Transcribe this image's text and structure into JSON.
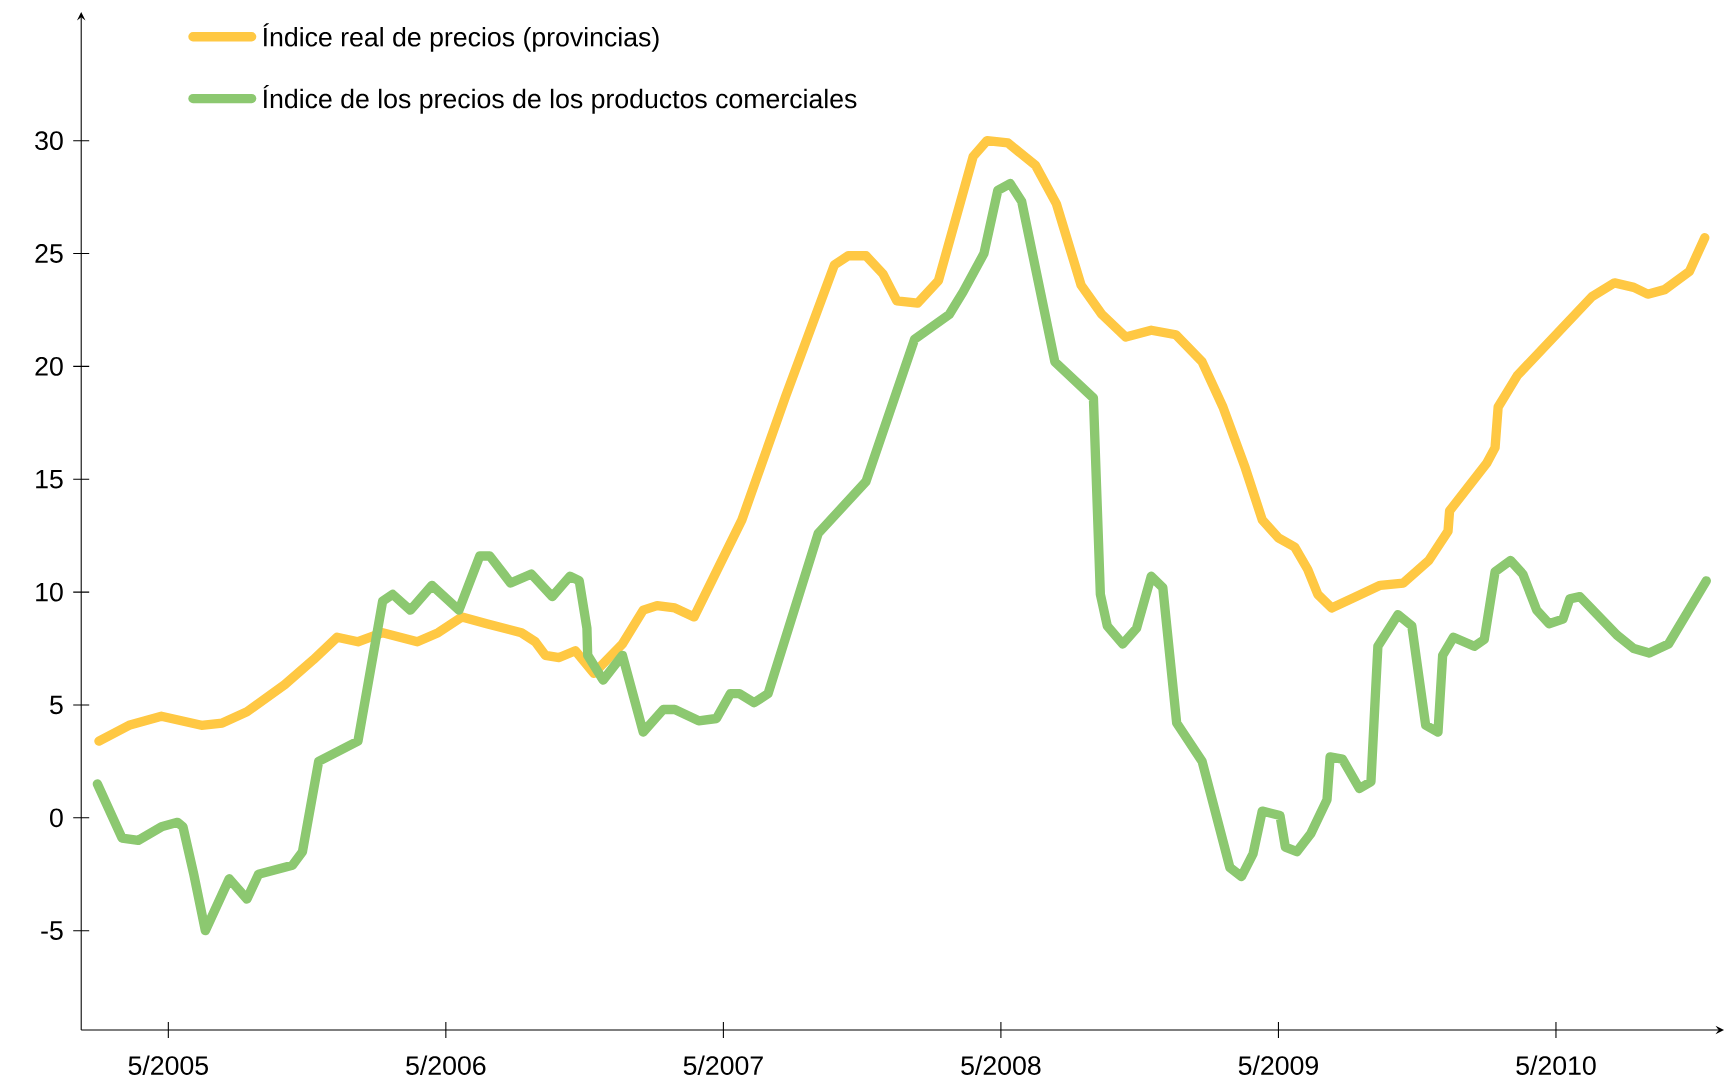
{
  "chart_data": {
    "type": "line",
    "legend": "top left",
    "xlim": [
      "2005-01-08",
      "2010-12-09"
    ],
    "ylim": [
      -9.4,
      35.7
    ],
    "xticks": [
      {
        "value": "2005-05",
        "label": "5/2005"
      },
      {
        "value": "2006-05",
        "label": "5/2006"
      },
      {
        "value": "2007-05",
        "label": "5/2007"
      },
      {
        "value": "2008-05",
        "label": "5/2008"
      },
      {
        "value": "2009-05",
        "label": "5/2009"
      },
      {
        "value": "2010-05",
        "label": "5/2010"
      }
    ],
    "yticks": [
      -5,
      0,
      5,
      10,
      15,
      20,
      25,
      30
    ],
    "series": [
      {
        "name": "Índice real de precios (provincias)",
        "color": "#ffc843",
        "x": [
          "2005-02-01",
          "2005-03-10",
          "2005-04-22",
          "2005-06-14",
          "2005-07-11",
          "2005-08-13",
          "2005-10-02",
          "2005-11-09",
          "2005-12-10",
          "2006-01-07",
          "2006-02-09",
          "2006-03-24",
          "2006-04-21",
          "2006-05-22",
          "2006-06-24",
          "2006-08-09",
          "2006-08-27",
          "2006-09-10",
          "2006-09-28",
          "2006-10-19",
          "2006-11-13",
          "2006-12-20",
          "2007-01-17",
          "2007-02-05",
          "2007-02-28",
          "2007-03-23",
          "2007-05-25",
          "2007-07-22",
          "2007-09-25",
          "2007-10-13",
          "2007-11-06",
          "2007-11-28",
          "2007-12-16",
          "2008-01-13",
          "2008-02-10",
          "2008-03-25",
          "2008-04-13",
          "2008-05-10",
          "2008-06-16",
          "2008-07-13",
          "2008-08-15",
          "2008-09-12",
          "2008-10-13",
          "2008-11-16",
          "2008-12-18",
          "2009-01-22",
          "2009-02-19",
          "2009-03-18",
          "2009-04-10",
          "2009-05-01",
          "2009-05-22",
          "2009-06-09",
          "2009-06-22",
          "2009-07-10",
          "2009-08-12",
          "2009-09-13",
          "2009-10-13",
          "2009-11-16",
          "2009-12-11",
          "2009-12-13",
          "2010-02-01",
          "2010-02-12",
          "2010-02-16",
          "2010-03-11",
          "2010-06-18",
          "2010-07-17",
          "2010-08-12",
          "2010-08-30",
          "2010-09-22",
          "2010-10-24",
          "2010-11-14"
        ],
        "values": [
          3.4,
          4.1,
          4.5,
          4.1,
          4.2,
          4.7,
          5.9,
          7.0,
          8.0,
          7.8,
          8.2,
          7.8,
          8.2,
          8.9,
          8.6,
          8.2,
          7.8,
          7.2,
          7.1,
          7.4,
          6.4,
          7.7,
          9.2,
          9.4,
          9.3,
          8.9,
          13.2,
          18.7,
          24.5,
          24.9,
          24.9,
          24.1,
          22.9,
          22.8,
          23.8,
          29.3,
          30.0,
          29.9,
          28.9,
          27.2,
          23.6,
          22.3,
          21.3,
          21.6,
          21.4,
          20.2,
          18.2,
          15.5,
          13.2,
          12.4,
          12.0,
          11.0,
          9.9,
          9.3,
          9.8,
          10.3,
          10.4,
          11.4,
          12.7,
          13.6,
          15.7,
          16.4,
          18.2,
          19.6,
          23.1,
          23.7,
          23.5,
          23.2,
          23.4,
          24.2,
          25.7
        ]
      },
      {
        "name": "Índice de los precios de los productos comerciales",
        "color": "#8cc870",
        "x": [
          "2005-01-29",
          "2005-03-01",
          "2005-03-22",
          "2005-04-22",
          "2005-05-13",
          "2005-05-20",
          "2005-06-04",
          "2005-06-19",
          "2005-07-20",
          "2005-08-13",
          "2005-08-28",
          "2005-10-12",
          "2005-10-25",
          "2005-11-16",
          "2006-01-07",
          "2006-02-09",
          "2006-02-22",
          "2006-03-15",
          "2006-04-13",
          "2006-05-18",
          "2006-06-15",
          "2006-06-28",
          "2006-07-25",
          "2006-08-22",
          "2006-09-19",
          "2006-10-12",
          "2006-10-24",
          "2006-11-04",
          "2006-11-05",
          "2006-11-25",
          "2006-12-20",
          "2007-01-17",
          "2007-02-13",
          "2007-02-28",
          "2007-03-29",
          "2007-04-22",
          "2007-05-10",
          "2007-05-22",
          "2007-06-11",
          "2007-06-29",
          "2007-09-04",
          "2007-11-06",
          "2008-01-09",
          "2008-02-24",
          "2008-03-12",
          "2008-04-09",
          "2008-04-27",
          "2008-05-13",
          "2008-05-28",
          "2008-07-11",
          "2008-09-01",
          "2008-09-10",
          "2008-09-19",
          "2008-10-09",
          "2008-10-27",
          "2008-11-16",
          "2008-12-01",
          "2008-12-19",
          "2009-01-22",
          "2009-02-28",
          "2009-03-13",
          "2009-03-28",
          "2009-04-10",
          "2009-05-03",
          "2009-05-10",
          "2009-05-25",
          "2009-06-13",
          "2009-07-04",
          "2009-07-08",
          "2009-07-24",
          "2009-08-16",
          "2009-09-01",
          "2009-09-10",
          "2009-10-06",
          "2009-10-24",
          "2009-11-12",
          "2009-11-28",
          "2009-12-04",
          "2009-12-18",
          "2010-01-15",
          "2010-01-28",
          "2010-02-12",
          "2010-03-02",
          "2010-03-18",
          "2010-04-06",
          "2010-04-22",
          "2010-05-10",
          "2010-05-19",
          "2010-06-02",
          "2010-07-20",
          "2010-08-12",
          "2010-09-02",
          "2010-09-27",
          "2010-11-16"
        ],
        "values": [
          1.5,
          -0.9,
          -1.0,
          -0.4,
          -0.2,
          -0.4,
          -2.5,
          -5.0,
          -2.7,
          -3.6,
          -2.5,
          -2.1,
          -1.5,
          2.5,
          3.4,
          9.6,
          9.9,
          9.2,
          10.3,
          9.2,
          11.6,
          11.6,
          10.4,
          10.8,
          9.8,
          10.7,
          10.5,
          8.4,
          7.2,
          6.1,
          7.2,
          3.8,
          4.8,
          4.8,
          4.3,
          4.4,
          5.5,
          5.5,
          5.1,
          5.5,
          12.6,
          14.9,
          21.2,
          22.3,
          23.3,
          25.0,
          27.8,
          28.1,
          27.3,
          20.2,
          18.6,
          9.9,
          8.5,
          7.7,
          8.4,
          10.7,
          10.2,
          4.2,
          2.5,
          -2.2,
          -2.6,
          -1.6,
          0.3,
          0.1,
          -1.3,
          -1.5,
          -0.7,
          0.8,
          2.7,
          2.6,
          1.3,
          1.6,
          7.6,
          9.0,
          8.5,
          4.1,
          3.8,
          7.2,
          8.0,
          7.6,
          7.9,
          10.9,
          11.4,
          10.8,
          9.2,
          8.6,
          8.8,
          9.7,
          9.8,
          8.1,
          7.5,
          7.3,
          7.7,
          10.5
        ]
      }
    ]
  }
}
